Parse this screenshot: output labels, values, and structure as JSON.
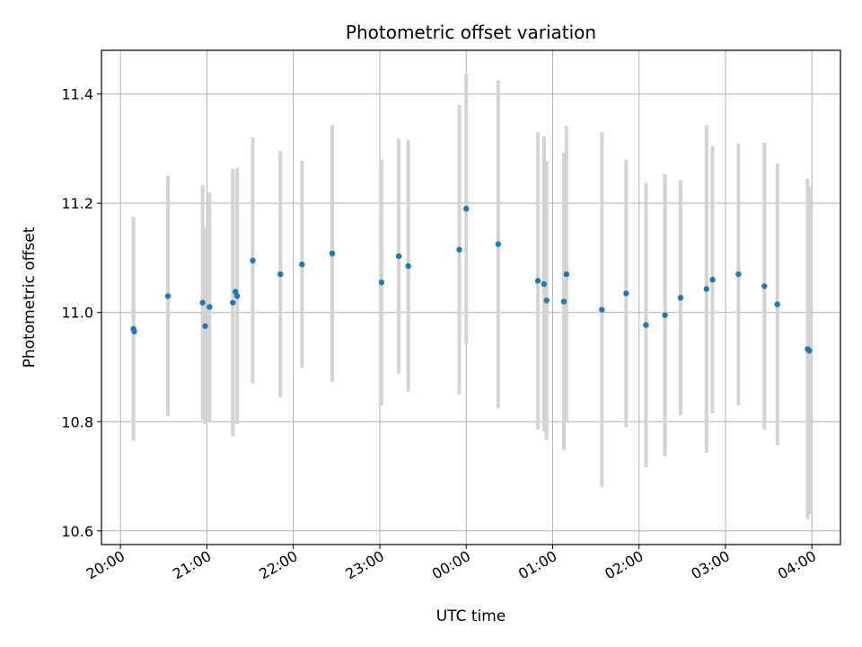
{
  "chart_data": {
    "type": "scatter",
    "title": "Photometric offset variation",
    "xlabel": "UTC time",
    "ylabel": "Photometric offset",
    "x_ticks": [
      "20:00",
      "21:00",
      "22:00",
      "23:00",
      "00:00",
      "01:00",
      "02:00",
      "03:00",
      "04:00"
    ],
    "x_tick_hours": [
      0,
      1,
      2,
      3,
      4,
      5,
      6,
      7,
      8
    ],
    "xlim_hours": [
      -0.22,
      8.33
    ],
    "y_ticks": [
      "10.6",
      "10.8",
      "11.0",
      "11.2",
      "11.4"
    ],
    "y_tick_values": [
      10.6,
      10.8,
      11.0,
      11.2,
      11.4
    ],
    "ylim": [
      10.575,
      11.48
    ],
    "grid": true,
    "point_color": "#1f77b4",
    "errorbar_color": "#d3d3d3",
    "series": [
      {
        "x_hours": [
          0.15,
          0.16,
          0.55,
          0.95,
          0.98,
          1.03,
          1.3,
          1.33,
          1.35,
          1.53,
          1.85,
          2.1,
          2.45,
          3.02,
          3.22,
          3.33,
          3.92,
          4.0,
          4.37,
          4.83,
          4.9,
          4.93,
          5.13,
          5.16,
          5.57,
          5.85,
          6.08,
          6.3,
          6.48,
          6.78,
          6.85,
          7.15,
          7.45,
          7.6,
          7.95,
          7.97
        ],
        "y": [
          10.97,
          10.965,
          11.03,
          11.018,
          10.975,
          11.01,
          11.018,
          11.038,
          11.03,
          11.095,
          11.07,
          11.088,
          11.108,
          11.055,
          11.103,
          11.085,
          11.115,
          11.19,
          11.125,
          11.058,
          11.052,
          11.022,
          11.02,
          11.07,
          11.005,
          11.035,
          10.977,
          10.995,
          11.027,
          11.043,
          11.06,
          11.07,
          11.048,
          11.015,
          10.933,
          10.93
        ],
        "y_err": [
          0.205,
          0.0,
          0.22,
          0.215,
          0.18,
          0.21,
          0.245,
          0.0,
          0.235,
          0.225,
          0.225,
          0.19,
          0.235,
          0.225,
          0.215,
          0.23,
          0.265,
          0.248,
          0.3,
          0.272,
          0.27,
          0.255,
          0.272,
          0.272,
          0.325,
          0.245,
          0.26,
          0.258,
          0.215,
          0.3,
          0.245,
          0.24,
          0.263,
          0.258,
          0.312,
          0.3
        ]
      }
    ]
  }
}
